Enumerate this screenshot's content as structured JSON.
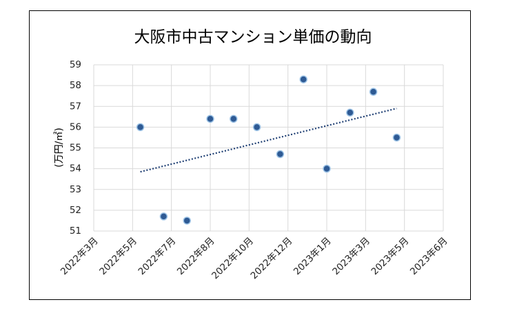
{
  "chart_data": {
    "type": "scatter",
    "title": "大阪市中古マンション単価の動向",
    "ylabel": "(万円/㎡)",
    "xlabel": "",
    "ylim": [
      51,
      59
    ],
    "yticks": [
      51,
      52,
      53,
      54,
      55,
      56,
      57,
      58,
      59
    ],
    "x_tick_labels": [
      "2022年3月",
      "2022年5月",
      "2022年7月",
      "2022年8月",
      "2022年10月",
      "2022年12月",
      "2023年1月",
      "2023年3月",
      "2023年5月",
      "2023年6月"
    ],
    "grid": true,
    "points": [
      {
        "x": "2022年5月",
        "y": 56.0
      },
      {
        "x": "2022年6月",
        "y": 51.7
      },
      {
        "x": "2022年7月",
        "y": 51.5
      },
      {
        "x": "2022年8月",
        "y": 56.4
      },
      {
        "x": "2022年9月",
        "y": 56.4
      },
      {
        "x": "2022年10月",
        "y": 56.0
      },
      {
        "x": "2022年11月",
        "y": 54.7
      },
      {
        "x": "2022年12月",
        "y": 58.3
      },
      {
        "x": "2023年1月",
        "y": 54.0
      },
      {
        "x": "2023年2月",
        "y": 56.7
      },
      {
        "x": "2023年3月",
        "y": 57.7
      },
      {
        "x": "2023年4月",
        "y": 55.5
      }
    ],
    "trendline": {
      "style": "dotted",
      "type": "linear",
      "start": {
        "x": "2022年5月",
        "y": 53.85
      },
      "end": {
        "x": "2023年4月",
        "y": 56.9
      }
    },
    "colors": {
      "marker_fill": "#2e5a94",
      "marker_edge": "#9dc3e6",
      "trend": "#1f3f73",
      "grid": "#d9d9d9"
    }
  }
}
